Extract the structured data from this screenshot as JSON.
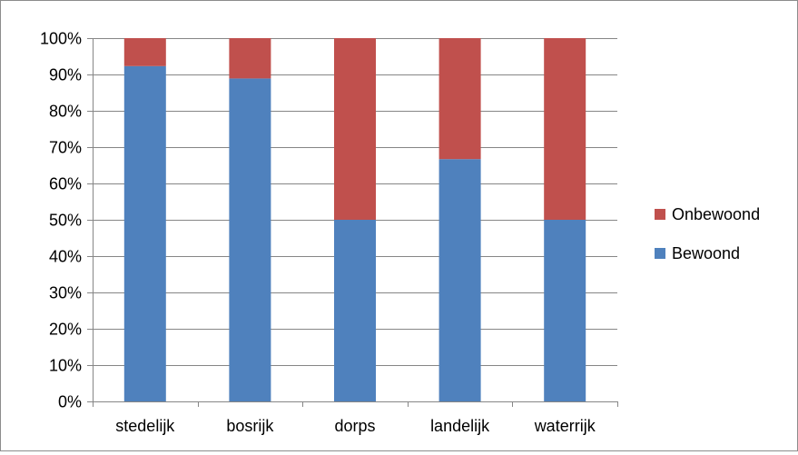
{
  "chart_data": {
    "type": "bar",
    "stacked": true,
    "percent_stacked": true,
    "categories": [
      "stedelijk",
      "bosrijk",
      "dorps",
      "landelijk",
      "waterrijk"
    ],
    "series": [
      {
        "name": "Bewoond",
        "color": "#4F81BD",
        "values": [
          92.3,
          88.9,
          50.0,
          66.7,
          50.0
        ]
      },
      {
        "name": "Onbewoond",
        "color": "#C0504D",
        "values": [
          7.7,
          11.1,
          50.0,
          33.3,
          50.0
        ]
      }
    ],
    "yticks": [
      "0%",
      "10%",
      "20%",
      "30%",
      "40%",
      "50%",
      "60%",
      "70%",
      "80%",
      "90%",
      "100%"
    ],
    "ylim": [
      0,
      100
    ],
    "grid": true,
    "legend": {
      "position": "right",
      "entries": [
        "Onbewoond",
        "Bewoond"
      ]
    },
    "colors": {
      "grid": "#868686",
      "axis": "#868686",
      "border": "#8c8c8c"
    }
  }
}
